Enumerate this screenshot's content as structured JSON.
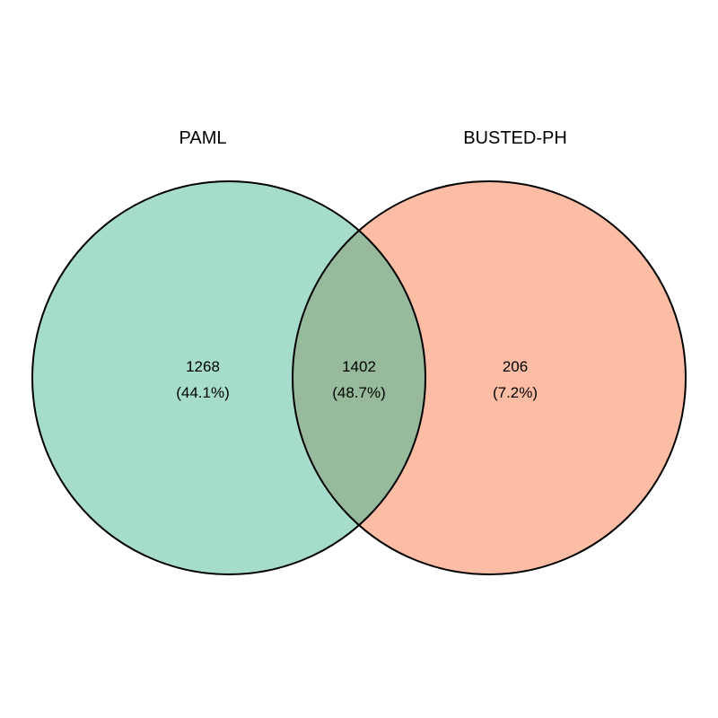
{
  "sets": [
    {
      "label": "PAML",
      "color": "#66C2A5",
      "fill_opacity": 0.58
    },
    {
      "label": "BUSTED-PH",
      "color": "#FC8D62",
      "fill_opacity": 0.58
    }
  ],
  "regions": [
    {
      "id": "only-paml",
      "count": "1268",
      "percent": "(44.1%)"
    },
    {
      "id": "intersection",
      "count": "1402",
      "percent": "(48.7%)"
    },
    {
      "id": "only-busted-ph",
      "count": "206",
      "percent": "(7.2%)"
    }
  ],
  "stroke_color": "#000000"
}
